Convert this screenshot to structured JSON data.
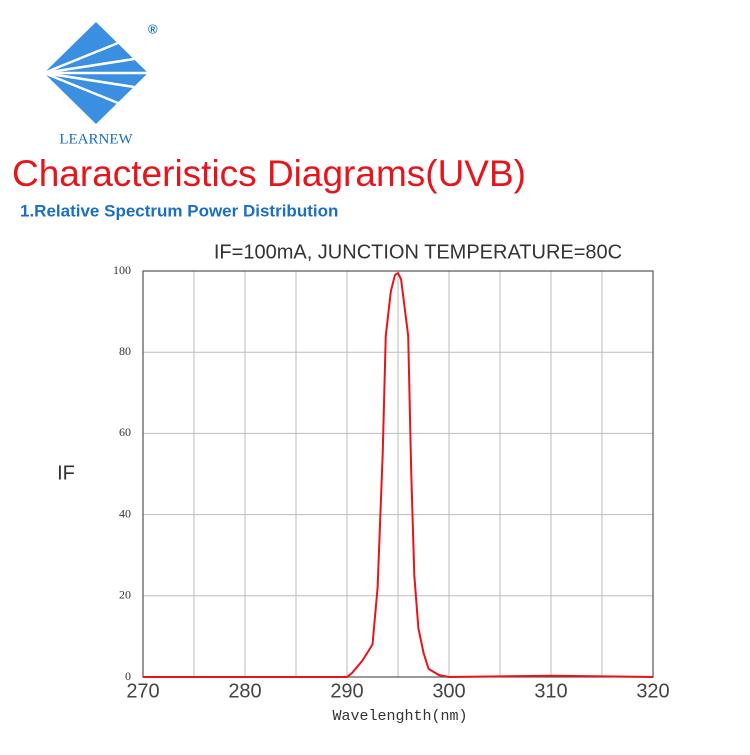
{
  "header": {
    "brand": "LEARNEW",
    "registered": "®",
    "heading": "Characteristics Diagrams(UVB)",
    "subheading": "1.Relative Spectrum Power Distribution"
  },
  "chart_data": {
    "type": "line",
    "title": "IF=100mA, JUNCTION TEMPERATURE=80C",
    "x_label": "Wavelenghth(nm)",
    "y_label": "IF",
    "x": [
      270,
      285,
      290,
      290.5,
      291.5,
      292.5,
      293,
      293.5,
      293.8,
      294.3,
      294.7,
      295,
      295.3,
      295.7,
      296,
      296.3,
      296.6,
      297,
      297.5,
      298,
      299,
      300,
      310,
      320
    ],
    "series": [
      {
        "name": "IF",
        "color": "#e8141c",
        "values": [
          0,
          0,
          0,
          1,
          4,
          8,
          22,
          55,
          84,
          95,
          99,
          99.5,
          98,
          90,
          84,
          50,
          25,
          12,
          6,
          2,
          0.5,
          0,
          0.3,
          0
        ]
      }
    ],
    "xlim": [
      270,
      320
    ],
    "xticks": [
      270,
      280,
      290,
      300,
      310,
      320
    ],
    "ylim": [
      0,
      100
    ],
    "yticks": [
      0,
      20,
      40,
      60,
      80,
      100
    ],
    "grid": true
  }
}
